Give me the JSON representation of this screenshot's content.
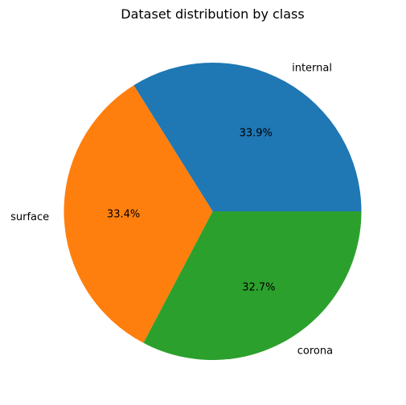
{
  "chart_data": {
    "type": "pie",
    "title": "Dataset distribution by class",
    "categories": [
      "internal",
      "surface",
      "corona"
    ],
    "values": [
      33.9,
      33.4,
      32.7
    ],
    "percent_labels": [
      "33.9%",
      "33.4%",
      "32.7%"
    ],
    "colors": [
      "#1f77b4",
      "#ff7f0e",
      "#2ca02c"
    ],
    "start_angle_deg": 0,
    "direction": "counterclockwise"
  }
}
